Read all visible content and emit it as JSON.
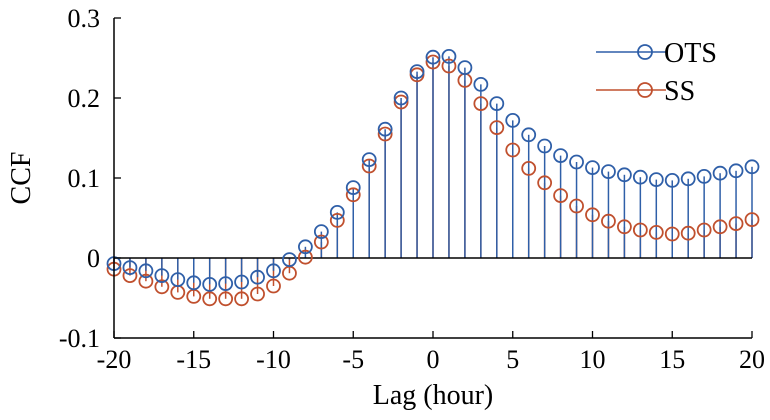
{
  "chart_data": {
    "type": "stem",
    "title": "",
    "xlabel": "Lag (hour)",
    "ylabel": "CCF",
    "xlim": [
      -20,
      20
    ],
    "ylim": [
      -0.1,
      0.3
    ],
    "xticks": [
      -20,
      -15,
      -10,
      -5,
      0,
      5,
      10,
      15,
      20
    ],
    "xtick_labels": [
      "-20",
      "-15",
      "-10",
      "-5",
      "0",
      "5",
      "10",
      "15",
      "20"
    ],
    "yticks": [
      -0.1,
      0,
      0.1,
      0.2,
      0.3
    ],
    "ytick_labels": [
      "-0.1",
      "0",
      "0.1",
      "0.2",
      "0.3"
    ],
    "grid": false,
    "legend_position": "top-right",
    "x": [
      -20,
      -19,
      -18,
      -17,
      -16,
      -15,
      -14,
      -13,
      -12,
      -11,
      -10,
      -9,
      -8,
      -7,
      -6,
      -5,
      -4,
      -3,
      -2,
      -1,
      0,
      1,
      2,
      3,
      4,
      5,
      6,
      7,
      8,
      9,
      10,
      11,
      12,
      13,
      14,
      15,
      16,
      17,
      18,
      19,
      20
    ],
    "series": [
      {
        "name": "OTS",
        "color": "#2f5fa8",
        "marker": "open-circle",
        "values": [
          -0.007,
          -0.012,
          -0.016,
          -0.022,
          -0.027,
          -0.031,
          -0.033,
          -0.032,
          -0.03,
          -0.024,
          -0.016,
          -0.002,
          0.014,
          0.033,
          0.057,
          0.088,
          0.123,
          0.161,
          0.2,
          0.233,
          0.251,
          0.252,
          0.238,
          0.217,
          0.193,
          0.172,
          0.154,
          0.14,
          0.128,
          0.12,
          0.113,
          0.108,
          0.104,
          0.101,
          0.098,
          0.097,
          0.099,
          0.102,
          0.106,
          0.109,
          0.114
        ]
      },
      {
        "name": "SS",
        "color": "#c0502e",
        "marker": "open-circle",
        "values": [
          -0.014,
          -0.022,
          -0.029,
          -0.036,
          -0.043,
          -0.048,
          -0.051,
          -0.051,
          -0.051,
          -0.045,
          -0.035,
          -0.019,
          0.001,
          0.02,
          0.047,
          0.079,
          0.115,
          0.155,
          0.195,
          0.229,
          0.245,
          0.24,
          0.222,
          0.193,
          0.163,
          0.135,
          0.112,
          0.094,
          0.078,
          0.065,
          0.054,
          0.046,
          0.039,
          0.035,
          0.032,
          0.03,
          0.031,
          0.035,
          0.039,
          0.043,
          0.048
        ]
      }
    ]
  }
}
